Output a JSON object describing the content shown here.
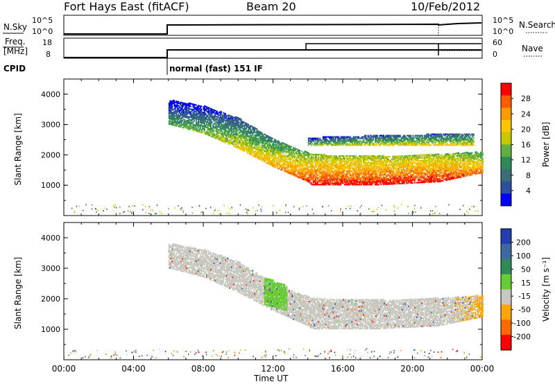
{
  "header": {
    "title": "Fort Hays East (fitACF)",
    "beam": "Beam 20",
    "date": "10/Feb/2012"
  },
  "top_panels": {
    "noise": {
      "left_label": "N.Sky",
      "left_ticks": [
        "10^5",
        "10^0"
      ],
      "right_label": "N.Search",
      "right_ticks": [
        "10^5",
        "10^0"
      ]
    },
    "freq": {
      "left_label_1": "Freq.",
      "left_label_2": "[MHz]",
      "left_ticks": [
        "18",
        "8"
      ],
      "right_label": "Nave",
      "right_ticks": [
        "60",
        "0"
      ]
    },
    "cpid": {
      "label": "CPID",
      "value": "normal (fast) 151 IF"
    }
  },
  "colorbars": {
    "power": {
      "label": "Power [dB]",
      "ticks": [
        "28",
        "24",
        "20",
        "16",
        "12",
        "8",
        "4"
      ],
      "colors": [
        "#ff0000",
        "#ff5a00",
        "#ff9a00",
        "#ffc600",
        "#c8c800",
        "#5fb040",
        "#2e8b57",
        "#3a6f78",
        "#2c4fa0",
        "#0000ff"
      ]
    },
    "velocity": {
      "label": "Velocity [m s⁻¹]",
      "ticks": [
        "200",
        "100",
        "50",
        "15",
        "-15",
        "-50",
        "-100",
        "-200"
      ],
      "colors": [
        "#1f3fb0",
        "#3c6aa0",
        "#2e8b57",
        "#66cc33",
        "#c8c8c0",
        "#ffa500",
        "#ff6a00",
        "#ff0000"
      ]
    }
  },
  "chart_data": [
    {
      "type": "heatmap",
      "name": "power",
      "ylabel": "Slant Range [km]",
      "xlim": [
        "00:00",
        "24:00"
      ],
      "ylim": [
        0,
        4500
      ],
      "yticks": [
        "4000",
        "3000",
        "2000",
        "1000"
      ],
      "xticks": [
        "00:00",
        "04:00",
        "08:00",
        "12:00",
        "16:00",
        "20:00",
        "00:00"
      ],
      "backscatter_bands": [
        {
          "x": [
            6.0,
            8.0,
            10.0,
            12.0,
            14.0,
            14.2,
            18.0,
            21.5,
            24.0
          ],
          "y_low": [
            3000,
            2700,
            2200,
            1600,
            1100,
            1000,
            1000,
            1100,
            1400
          ],
          "y_high": [
            3800,
            3600,
            3200,
            2500,
            2050,
            2000,
            1950,
            2000,
            2100
          ],
          "power_db": [
            12,
            14,
            18,
            22,
            26,
            28,
            28,
            28,
            24
          ]
        },
        {
          "x": [
            14.0,
            16.0,
            20.0,
            23.5
          ],
          "y_low": [
            2300,
            2300,
            2300,
            2300
          ],
          "y_high": [
            2550,
            2600,
            2650,
            2700
          ],
          "power_db": [
            14,
            16,
            18,
            18
          ]
        }
      ]
    },
    {
      "type": "heatmap",
      "name": "velocity",
      "ylabel": "Slant Range [km]",
      "xlabel": "Time UT",
      "xlim": [
        "00:00",
        "24:00"
      ],
      "ylim": [
        0,
        4500
      ],
      "yticks": [
        "4000",
        "3000",
        "2000",
        "1000"
      ],
      "xticks": [
        "00:00",
        "04:00",
        "08:00",
        "12:00",
        "16:00",
        "20:00",
        "00:00"
      ],
      "backscatter_bands": [
        {
          "x": [
            6.0,
            8.0,
            10.0,
            12.0,
            14.0,
            14.2,
            18.0,
            21.5,
            24.0
          ],
          "y_low": [
            3000,
            2700,
            2200,
            1600,
            1100,
            1000,
            1000,
            1100,
            1400
          ],
          "y_high": [
            3800,
            3600,
            3200,
            2500,
            2050,
            2000,
            1950,
            2000,
            2100
          ],
          "velocity_ms": [
            0,
            0,
            0,
            0,
            0,
            0,
            0,
            0,
            -20
          ]
        },
        {
          "x": [
            11.5,
            12.8
          ],
          "y_low": [
            1800,
            1600
          ],
          "y_high": [
            2700,
            2400
          ],
          "velocity_ms": [
            30,
            30
          ]
        }
      ]
    }
  ]
}
